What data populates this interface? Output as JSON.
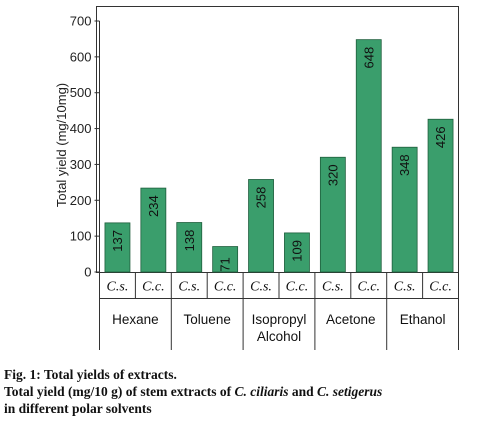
{
  "chart_data": {
    "type": "bar",
    "ylabel": "Total yield (mg/10mg)",
    "ylim": [
      0,
      700
    ],
    "yticks": [
      0,
      100,
      200,
      300,
      400,
      500,
      600,
      700
    ],
    "bar_color": "#3a9e6c",
    "groups": [
      {
        "label": [
          "Hexane"
        ],
        "bars": [
          {
            "species": "C.s.",
            "value": 137
          },
          {
            "species": "C.c.",
            "value": 234
          }
        ]
      },
      {
        "label": [
          "Toluene"
        ],
        "bars": [
          {
            "species": "C.s.",
            "value": 138
          },
          {
            "species": "C.c.",
            "value": 71
          }
        ]
      },
      {
        "label": [
          "Isopropyl",
          "Alcohol"
        ],
        "bars": [
          {
            "species": "C.s.",
            "value": 258
          },
          {
            "species": "C.c.",
            "value": 109
          }
        ]
      },
      {
        "label": [
          "Acetone"
        ],
        "bars": [
          {
            "species": "C.s.",
            "value": 320
          },
          {
            "species": "C.c.",
            "value": 648
          }
        ]
      },
      {
        "label": [
          "Ethanol"
        ],
        "bars": [
          {
            "species": "C.s.",
            "value": 348
          },
          {
            "species": "C.c.",
            "value": 426
          }
        ]
      }
    ]
  },
  "caption": {
    "fig_title": "Fig. 1: Total yields of extracts.",
    "line2_prefix": "Total yield (mg/10 g) of stem extracts of ",
    "species_1": "C. ciliaris",
    "connector": " and ",
    "species_2": "C. setigerus",
    "line3": "in different polar solvents"
  }
}
